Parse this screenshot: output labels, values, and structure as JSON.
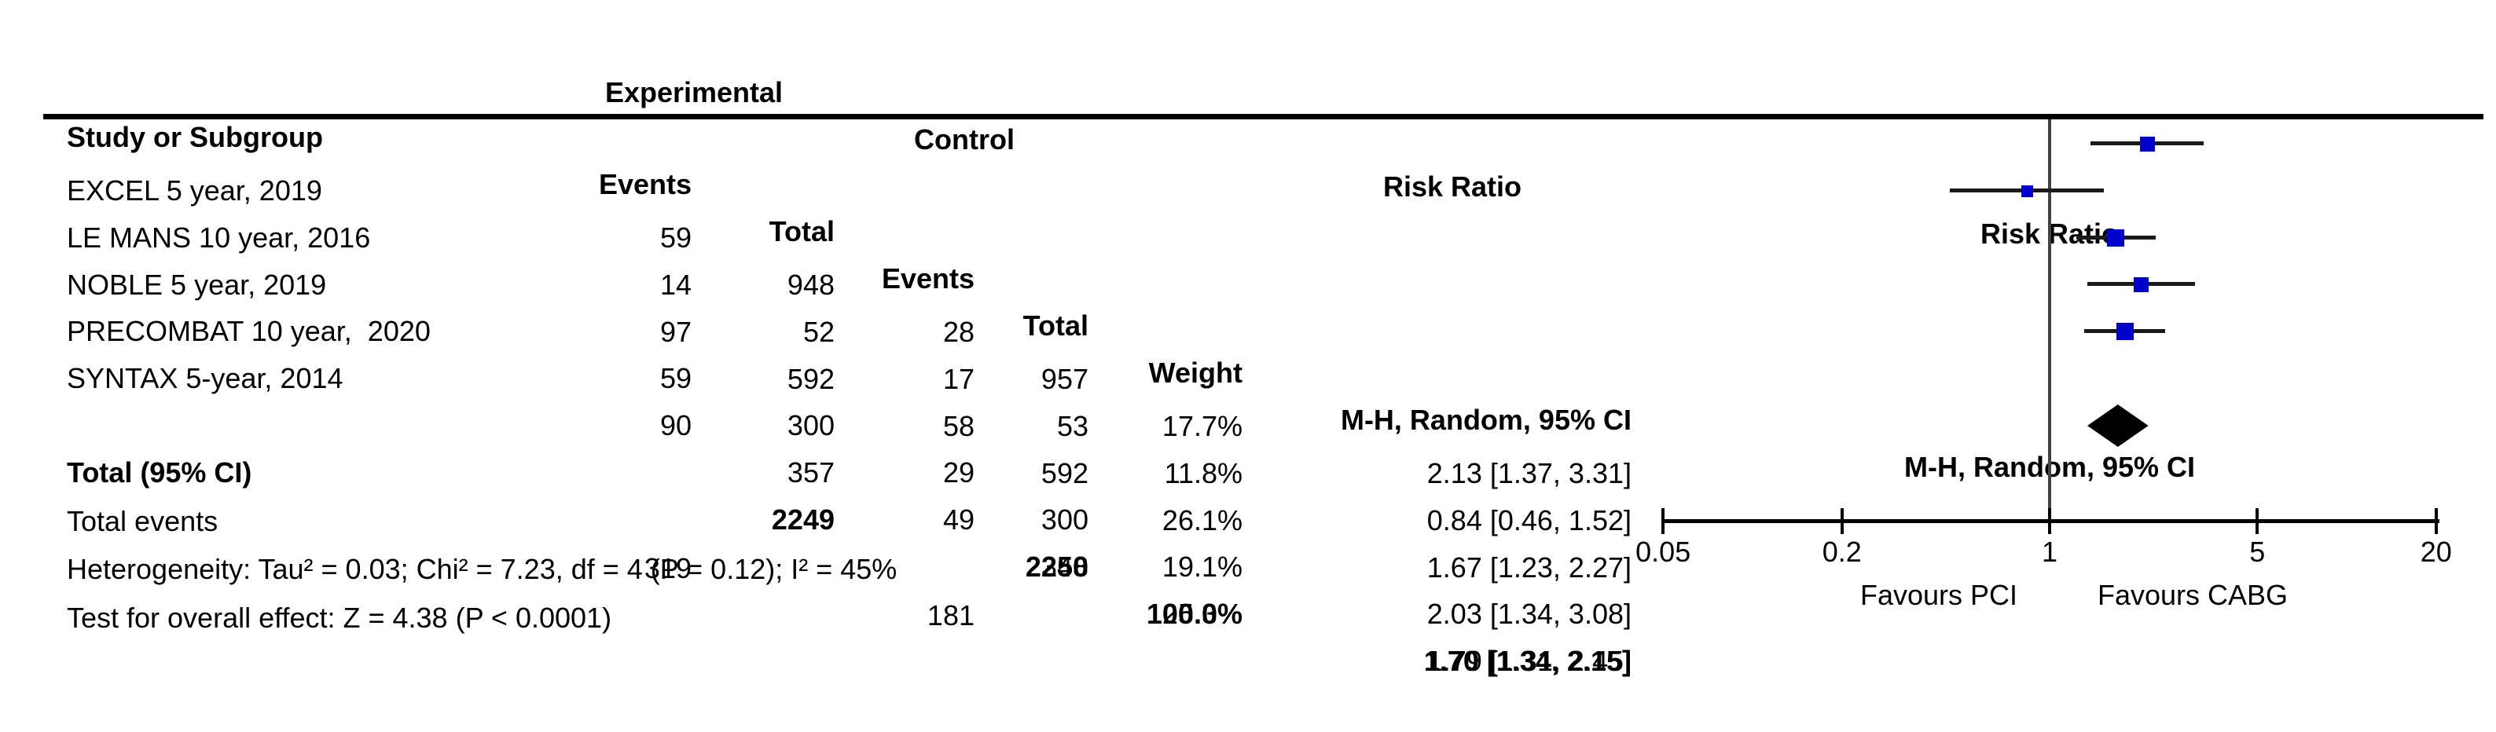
{
  "table": {
    "header": {
      "group_experimental": "Experimental",
      "group_control": "Control",
      "col_study": "Study or Subgroup",
      "col_events": "Events",
      "col_total": "Total",
      "col_weight": "Weight",
      "rr_title": "Risk Ratio",
      "rr_method": "M-H, Random, 95% CI"
    },
    "rows": [
      {
        "study": "EXCEL 5 year, 2019",
        "exp_events": "59",
        "exp_total": "948",
        "ctrl_events": "28",
        "ctrl_total": "957",
        "weight": "17.7%",
        "rr_text": "2.13 [1.37, 3.31]"
      },
      {
        "study": "LE MANS 10 year, 2016",
        "exp_events": "14",
        "exp_total": "52",
        "ctrl_events": "17",
        "ctrl_total": "53",
        "weight": "11.8%",
        "rr_text": "0.84 [0.46, 1.52]"
      },
      {
        "study": "NOBLE 5 year, 2019",
        "exp_events": "97",
        "exp_total": "592",
        "ctrl_events": "58",
        "ctrl_total": "592",
        "weight": "26.1%",
        "rr_text": "1.67 [1.23, 2.27]"
      },
      {
        "study": "PRECOMBAT 10 year,  2020",
        "exp_events": "59",
        "exp_total": "300",
        "ctrl_events": "29",
        "ctrl_total": "300",
        "weight": "19.1%",
        "rr_text": "2.03 [1.34, 3.08]"
      },
      {
        "study": "SYNTAX 5-year, 2014",
        "exp_events": "90",
        "exp_total": "357",
        "ctrl_events": "49",
        "ctrl_total": "348",
        "weight": "25.3%",
        "rr_text": "1.79 [1.31, 2.45]"
      }
    ],
    "total": {
      "label": "Total (95% CI)",
      "exp_total": "2249",
      "ctrl_total": "2250",
      "weight": "100.0%",
      "rr_text": "1.70 [1.34, 2.15]"
    },
    "total_events": {
      "label": "Total events",
      "exp": "319",
      "ctrl": "181"
    },
    "heterogeneity": "Heterogeneity: Tau² = 0.03; Chi² = 7.23, df = 4 (P = 0.12); I² = 45%",
    "overall_effect": "Test for overall effect: Z = 4.38 (P < 0.0001)"
  },
  "chart_data": {
    "type": "forest",
    "effect_measure": "Risk Ratio",
    "model": "M-H, Random, 95% CI",
    "x_scale": "log",
    "xlim": [
      0.05,
      20
    ],
    "axis_ticks": [
      {
        "v": 0.05,
        "label": "0.05"
      },
      {
        "v": 0.2,
        "label": "0.2"
      },
      {
        "v": 1,
        "label": "1"
      },
      {
        "v": 5,
        "label": "5"
      },
      {
        "v": 20,
        "label": "20"
      }
    ],
    "favours_left": "Favours PCI",
    "favours_right": "Favours CABG",
    "studies": [
      {
        "name": "EXCEL 5 year, 2019",
        "rr": 2.13,
        "ci_low": 1.37,
        "ci_high": 3.31,
        "weight": 17.7
      },
      {
        "name": "LE MANS 10 year, 2016",
        "rr": 0.84,
        "ci_low": 0.46,
        "ci_high": 1.52,
        "weight": 11.8
      },
      {
        "name": "NOBLE 5 year, 2019",
        "rr": 1.67,
        "ci_low": 1.23,
        "ci_high": 2.27,
        "weight": 26.1
      },
      {
        "name": "PRECOMBAT 10 year, 2020",
        "rr": 2.03,
        "ci_low": 1.34,
        "ci_high": 3.08,
        "weight": 19.1
      },
      {
        "name": "SYNTAX 5-year, 2014",
        "rr": 1.79,
        "ci_low": 1.31,
        "ci_high": 2.45,
        "weight": 25.3
      }
    ],
    "total": {
      "rr": 1.7,
      "ci_low": 1.34,
      "ci_high": 2.15
    },
    "marker_color": "#0000CD",
    "ci_line_color": "#1a1a1a",
    "diamond_color": "#000000"
  }
}
